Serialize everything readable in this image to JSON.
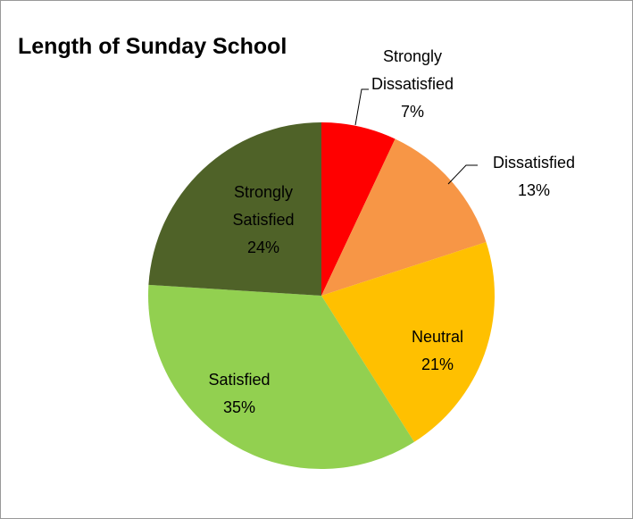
{
  "chart_data": {
    "type": "pie",
    "title": "Length of Sunday School",
    "categories": [
      "Strongly Dissatisfied",
      "Dissatisfied",
      "Neutral",
      "Satisfied",
      "Strongly Satisfied"
    ],
    "values": [
      7,
      13,
      21,
      35,
      24
    ],
    "value_labels": [
      "7%",
      "13%",
      "21%",
      "35%",
      "24%"
    ],
    "colors": [
      "#ff0000",
      "#f79646",
      "#ffc000",
      "#92d050",
      "#4f6228"
    ]
  }
}
